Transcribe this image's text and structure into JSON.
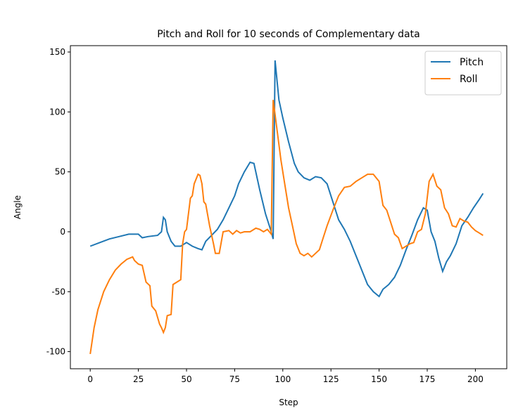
{
  "chart_data": {
    "type": "line",
    "title": "Pitch and Roll for 10 seconds of Complementary data",
    "x_label": "Step",
    "y_label": "Angle",
    "xlim": [
      -10.3,
      216.3
    ],
    "xticks": [
      0,
      25,
      50,
      75,
      100,
      125,
      150,
      175,
      200
    ],
    "ylim": [
      -114.3,
      155.3
    ],
    "yticks": [
      -100,
      -50,
      0,
      50,
      100,
      150
    ],
    "legend": "upper right",
    "series": [
      {
        "name": "Pitch",
        "color": "#1f77b4",
        "x": [
          0,
          5,
          10,
          15,
          20,
          25,
          27,
          30,
          35,
          37,
          38,
          39,
          40,
          42,
          44,
          47,
          50,
          53,
          56,
          58,
          60,
          63,
          66,
          69,
          72,
          75,
          77,
          80,
          83,
          85,
          88,
          91,
          94,
          95,
          96,
          98,
          100,
          103,
          106,
          108,
          111,
          114,
          117,
          120,
          123,
          126,
          129,
          132,
          135,
          138,
          141,
          144,
          147,
          150,
          152,
          155,
          158,
          161,
          164,
          167,
          170,
          173,
          175,
          177,
          179,
          181,
          183,
          185,
          187,
          190,
          193,
          196,
          199,
          202,
          204
        ],
        "values": [
          -12,
          -9,
          -6,
          -4,
          -2,
          -2,
          -5,
          -4,
          -3,
          0,
          12,
          10,
          0,
          -8,
          -12,
          -12,
          -9,
          -12,
          -14,
          -15,
          -8,
          -3,
          2,
          10,
          20,
          30,
          40,
          50,
          58,
          57,
          35,
          15,
          0,
          -6,
          143,
          110,
          95,
          75,
          57,
          50,
          45,
          43,
          46,
          45,
          40,
          25,
          10,
          2,
          -8,
          -20,
          -32,
          -44,
          -50,
          -54,
          -48,
          -44,
          -38,
          -28,
          -15,
          -3,
          10,
          20,
          18,
          0,
          -8,
          -22,
          -33,
          -25,
          -20,
          -10,
          5,
          12,
          20,
          27,
          32
        ]
      },
      {
        "name": "Roll",
        "color": "#ff7f0e",
        "x": [
          0,
          2,
          4,
          7,
          10,
          13,
          16,
          19,
          22,
          23,
          25,
          27,
          29,
          31,
          32,
          34,
          36,
          37,
          38,
          39,
          40,
          42,
          43,
          45,
          47,
          48,
          49,
          50,
          52,
          53,
          54,
          56,
          57,
          58,
          59,
          60,
          62,
          64,
          65,
          67,
          69,
          72,
          74,
          76,
          78,
          80,
          83,
          86,
          88,
          90,
          92,
          94,
          95,
          97,
          99,
          101,
          103,
          105,
          107,
          109,
          111,
          113,
          115,
          117,
          119,
          121,
          123,
          126,
          129,
          132,
          135,
          138,
          141,
          144,
          147,
          150,
          152,
          154,
          156,
          158,
          160,
          162,
          164,
          166,
          168,
          170,
          172,
          174,
          176,
          178,
          180,
          182,
          184,
          186,
          188,
          190,
          192,
          194,
          196,
          198,
          200,
          202,
          204
        ],
        "values": [
          -102,
          -80,
          -65,
          -50,
          -40,
          -32,
          -27,
          -23,
          -21,
          -24,
          -27,
          -28,
          -42,
          -45,
          -62,
          -66,
          -77,
          -80,
          -84,
          -80,
          -70,
          -69,
          -44,
          -42,
          -40,
          -10,
          0,
          2,
          28,
          30,
          40,
          48,
          47,
          40,
          25,
          23,
          5,
          -10,
          -18,
          -18,
          0,
          1,
          -2,
          1,
          -1,
          0,
          0,
          3,
          2,
          0,
          2,
          -2,
          110,
          85,
          60,
          40,
          20,
          5,
          -10,
          -18,
          -20,
          -18,
          -21,
          -18,
          -15,
          -5,
          5,
          18,
          30,
          37,
          38,
          42,
          45,
          48,
          48,
          42,
          22,
          18,
          8,
          -2,
          -5,
          -14,
          -12,
          -10,
          -9,
          0,
          2,
          15,
          42,
          48,
          38,
          35,
          20,
          15,
          5,
          4,
          11,
          9,
          8,
          4,
          1,
          -1,
          -3
        ]
      }
    ]
  }
}
